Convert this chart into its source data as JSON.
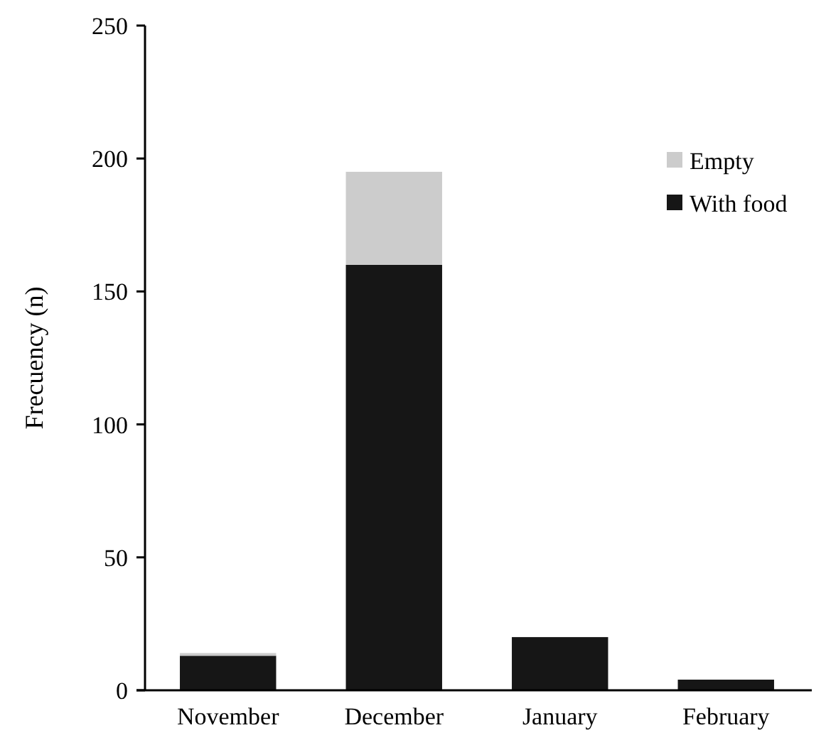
{
  "chart_data": {
    "type": "bar",
    "ylabel": "Frecuency (n)",
    "categories": [
      "November",
      "December",
      "January",
      "February"
    ],
    "stacked": true,
    "series": [
      {
        "name": "With food",
        "color": "#161616",
        "values": [
          13,
          160,
          20,
          4
        ]
      },
      {
        "name": "Empty",
        "color": "#cccccc",
        "values": [
          1,
          35,
          0,
          0
        ]
      }
    ],
    "ylim": [
      0,
      250
    ],
    "yticks": [
      0,
      50,
      100,
      150,
      200,
      250
    ],
    "legend": "top right",
    "grid": false
  }
}
